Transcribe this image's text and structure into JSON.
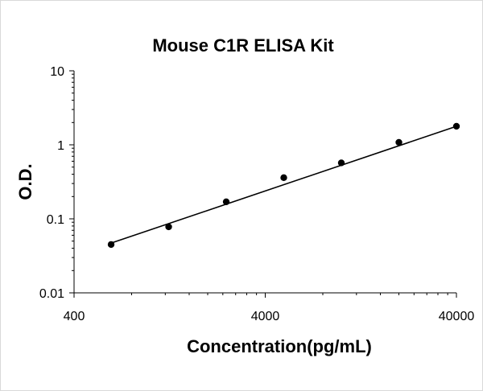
{
  "chart_data": {
    "type": "scatter",
    "title": "Mouse C1R ELISA Kit",
    "xlabel": "Concentration(pg/mL)",
    "ylabel": "O.D.",
    "x_scale": "log",
    "y_scale": "log",
    "xlim": [
      400,
      40000
    ],
    "ylim": [
      0.01,
      10
    ],
    "x_ticks": [
      {
        "value": 400,
        "label": "400"
      },
      {
        "value": 4000,
        "label": "4000"
      },
      {
        "value": 40000,
        "label": "40000"
      }
    ],
    "y_ticks": [
      {
        "value": 10,
        "label": "10"
      },
      {
        "value": 1,
        "label": "1"
      },
      {
        "value": 0.1,
        "label": "0.1"
      },
      {
        "value": 0.01,
        "label": "0.01"
      }
    ],
    "grid": false,
    "legend": "none",
    "series": [
      {
        "points": [
          {
            "x": 625,
            "y": 0.045
          },
          {
            "x": 1250,
            "y": 0.078
          },
          {
            "x": 2500,
            "y": 0.17
          },
          {
            "x": 5000,
            "y": 0.36
          },
          {
            "x": 10000,
            "y": 0.57
          },
          {
            "x": 20000,
            "y": 1.08
          },
          {
            "x": 40000,
            "y": 1.78
          }
        ],
        "fit_line": {
          "x": [
            625,
            40000
          ],
          "y": [
            0.047,
            1.78
          ]
        }
      }
    ],
    "colors": {
      "marker": "#000000",
      "line": "#000000",
      "axis": "#000000",
      "border": "#d9d9d9"
    }
  }
}
